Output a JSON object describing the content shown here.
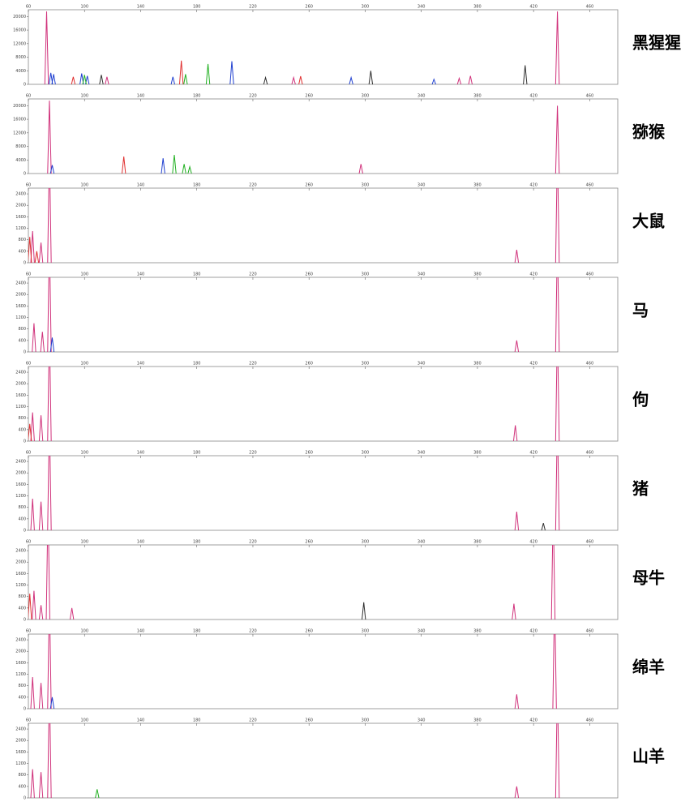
{
  "chart_data": [
    {
      "type": "peaks",
      "title": "黑猩猩",
      "xlim": [
        60,
        480
      ],
      "xticks": [
        60,
        100,
        140,
        180,
        220,
        260,
        300,
        340,
        380,
        420,
        460
      ],
      "ylim": [
        0,
        22000
      ],
      "yticks": [
        0,
        4000,
        8000,
        12000,
        16000,
        20000
      ],
      "series": [
        {
          "color": "#d0307a",
          "x": [
            73,
            116,
            249,
            367,
            375,
            437
          ],
          "values": [
            21500,
            2200,
            2000,
            1800,
            2500,
            21500
          ]
        },
        {
          "color": "#e03030",
          "x": [
            92,
            169,
            254
          ],
          "values": [
            2200,
            7000,
            2400
          ]
        },
        {
          "color": "#2040d0",
          "x": [
            76,
            78,
            98,
            102,
            163,
            205,
            290,
            349
          ],
          "values": [
            3400,
            3000,
            3200,
            2500,
            2200,
            6800,
            2000,
            1500
          ]
        },
        {
          "color": "#20b020",
          "x": [
            100,
            172,
            188
          ],
          "values": [
            2800,
            3000,
            6000
          ]
        },
        {
          "color": "#303030",
          "x": [
            112,
            229,
            304,
            414
          ],
          "values": [
            2800,
            2000,
            4000,
            5600
          ]
        }
      ]
    },
    {
      "type": "peaks",
      "title": "猕猴",
      "xlim": [
        60,
        480
      ],
      "xticks": [
        60,
        100,
        140,
        180,
        220,
        260,
        300,
        340,
        380,
        420,
        460
      ],
      "ylim": [
        0,
        22000
      ],
      "yticks": [
        0,
        4000,
        8000,
        12000,
        16000,
        20000
      ],
      "series": [
        {
          "color": "#d0307a",
          "x": [
            75,
            297,
            437
          ],
          "values": [
            21500,
            2800,
            20000
          ]
        },
        {
          "color": "#e03030",
          "x": [
            128
          ],
          "values": [
            5000
          ]
        },
        {
          "color": "#2040d0",
          "x": [
            77,
            156
          ],
          "values": [
            2500,
            4500
          ]
        },
        {
          "color": "#20b020",
          "x": [
            164,
            171,
            175
          ],
          "values": [
            5500,
            2800,
            2000
          ]
        }
      ]
    },
    {
      "type": "peaks",
      "title": "大鼠",
      "xlim": [
        60,
        480
      ],
      "xticks": [
        60,
        100,
        140,
        180,
        220,
        260,
        300,
        340,
        380,
        420,
        460
      ],
      "ylim": [
        0,
        2600
      ],
      "yticks": [
        0,
        400,
        800,
        1200,
        1600,
        2000,
        2400
      ],
      "series": [
        {
          "color": "#d0307a",
          "x": [
            63,
            69,
            75,
            408,
            437
          ],
          "values": [
            1100,
            700,
            4000,
            450,
            4000
          ]
        },
        {
          "color": "#e03030",
          "x": [
            61,
            66
          ],
          "values": [
            900,
            400
          ]
        }
      ]
    },
    {
      "type": "peaks",
      "title": "马",
      "xlim": [
        60,
        480
      ],
      "xticks": [
        60,
        100,
        140,
        180,
        220,
        260,
        300,
        340,
        380,
        420,
        460
      ],
      "ylim": [
        0,
        2600
      ],
      "yticks": [
        0,
        400,
        800,
        1200,
        1600,
        2000,
        2400
      ],
      "series": [
        {
          "color": "#d0307a",
          "x": [
            64,
            70,
            75,
            408,
            437
          ],
          "values": [
            1000,
            700,
            4000,
            400,
            4000
          ]
        },
        {
          "color": "#2040d0",
          "x": [
            77
          ],
          "values": [
            500
          ]
        }
      ]
    },
    {
      "type": "peaks",
      "title": "佝",
      "xlim": [
        60,
        480
      ],
      "xticks": [
        60,
        100,
        140,
        180,
        220,
        260,
        300,
        340,
        380,
        420,
        460
      ],
      "ylim": [
        0,
        2600
      ],
      "yticks": [
        0,
        400,
        800,
        1200,
        1600,
        2000,
        2400
      ],
      "series": [
        {
          "color": "#d0307a",
          "x": [
            63,
            69,
            75,
            407,
            437
          ],
          "values": [
            1000,
            900,
            4000,
            550,
            4000
          ]
        },
        {
          "color": "#e03030",
          "x": [
            61
          ],
          "values": [
            600
          ]
        }
      ]
    },
    {
      "type": "peaks",
      "title": "猪",
      "xlim": [
        60,
        480
      ],
      "xticks": [
        60,
        100,
        140,
        180,
        220,
        260,
        300,
        340,
        380,
        420,
        460
      ],
      "ylim": [
        0,
        2600
      ],
      "yticks": [
        0,
        400,
        800,
        1200,
        1600,
        2000,
        2400
      ],
      "series": [
        {
          "color": "#d0307a",
          "x": [
            63,
            69,
            75,
            408,
            437
          ],
          "values": [
            1100,
            1000,
            4000,
            650,
            4000
          ]
        },
        {
          "color": "#303030",
          "x": [
            427
          ],
          "values": [
            250
          ]
        }
      ]
    },
    {
      "type": "peaks",
      "title": "母牛",
      "xlim": [
        60,
        480
      ],
      "xticks": [
        60,
        100,
        140,
        180,
        220,
        260,
        300,
        340,
        380,
        420,
        460
      ],
      "ylim": [
        0,
        2600
      ],
      "yticks": [
        0,
        400,
        800,
        1200,
        1600,
        2000,
        2400
      ],
      "series": [
        {
          "color": "#d0307a",
          "x": [
            64,
            69,
            74,
            91,
            406,
            434
          ],
          "values": [
            1000,
            500,
            4000,
            400,
            550,
            4000
          ]
        },
        {
          "color": "#e03030",
          "x": [
            61
          ],
          "values": [
            900
          ]
        },
        {
          "color": "#303030",
          "x": [
            299
          ],
          "values": [
            600
          ]
        }
      ]
    },
    {
      "type": "peaks",
      "title": "绵羊",
      "xlim": [
        60,
        480
      ],
      "xticks": [
        60,
        100,
        140,
        180,
        220,
        260,
        300,
        340,
        380,
        420,
        460
      ],
      "ylim": [
        0,
        2600
      ],
      "yticks": [
        0,
        400,
        800,
        1200,
        1600,
        2000,
        2400
      ],
      "series": [
        {
          "color": "#d0307a",
          "x": [
            63,
            69,
            75,
            408,
            435
          ],
          "values": [
            1100,
            900,
            4000,
            500,
            4000
          ]
        },
        {
          "color": "#2040d0",
          "x": [
            77
          ],
          "values": [
            400
          ]
        }
      ]
    },
    {
      "type": "peaks",
      "title": "山羊",
      "xlim": [
        60,
        480
      ],
      "xticks": [
        60,
        100,
        140,
        180,
        220,
        260,
        300,
        340,
        380,
        420,
        460
      ],
      "ylim": [
        0,
        2600
      ],
      "yticks": [
        0,
        400,
        800,
        1200,
        1600,
        2000,
        2400
      ],
      "series": [
        {
          "color": "#d0307a",
          "x": [
            63,
            69,
            75,
            408,
            437
          ],
          "values": [
            1000,
            900,
            4000,
            400,
            4000
          ]
        },
        {
          "color": "#20b020",
          "x": [
            109
          ],
          "values": [
            300
          ]
        }
      ]
    }
  ]
}
